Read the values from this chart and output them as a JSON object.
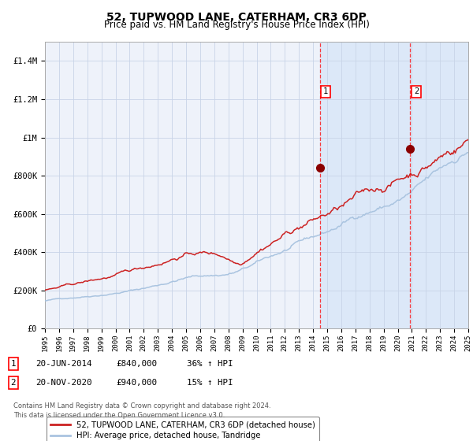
{
  "title": "52, TUPWOOD LANE, CATERHAM, CR3 6DP",
  "subtitle": "Price paid vs. HM Land Registry's House Price Index (HPI)",
  "hpi_color": "#aac4e0",
  "price_color": "#cc2222",
  "background_color": "#ffffff",
  "plot_bg_color": "#eef2fa",
  "grid_color": "#c8d4e8",
  "shade_color": "#dce8f8",
  "ylim": [
    0,
    1500000
  ],
  "yticks": [
    0,
    200000,
    400000,
    600000,
    800000,
    1000000,
    1200000,
    1400000
  ],
  "ytick_labels": [
    "£0",
    "£200K",
    "£400K",
    "£600K",
    "£800K",
    "£1M",
    "£1.2M",
    "£1.4M"
  ],
  "x_start_year": 1995,
  "x_end_year": 2025,
  "sale1_date": 2014.47,
  "sale1_price": 840000,
  "sale1_label": "1",
  "sale2_date": 2020.89,
  "sale2_price": 940000,
  "sale2_label": "2",
  "legend_line1": "52, TUPWOOD LANE, CATERHAM, CR3 6DP (detached house)",
  "legend_line2": "HPI: Average price, detached house, Tandridge",
  "sale1_info_num": "1",
  "sale1_info_date": "20-JUN-2014",
  "sale1_info_price": "£840,000",
  "sale1_info_hpi": "36% ↑ HPI",
  "sale2_info_num": "2",
  "sale2_info_date": "20-NOV-2020",
  "sale2_info_price": "£940,000",
  "sale2_info_hpi": "15% ↑ HPI",
  "footnote_line1": "Contains HM Land Registry data © Crown copyright and database right 2024.",
  "footnote_line2": "This data is licensed under the Open Government Licence v3.0.",
  "title_fontsize": 10,
  "subtitle_fontsize": 8.5
}
